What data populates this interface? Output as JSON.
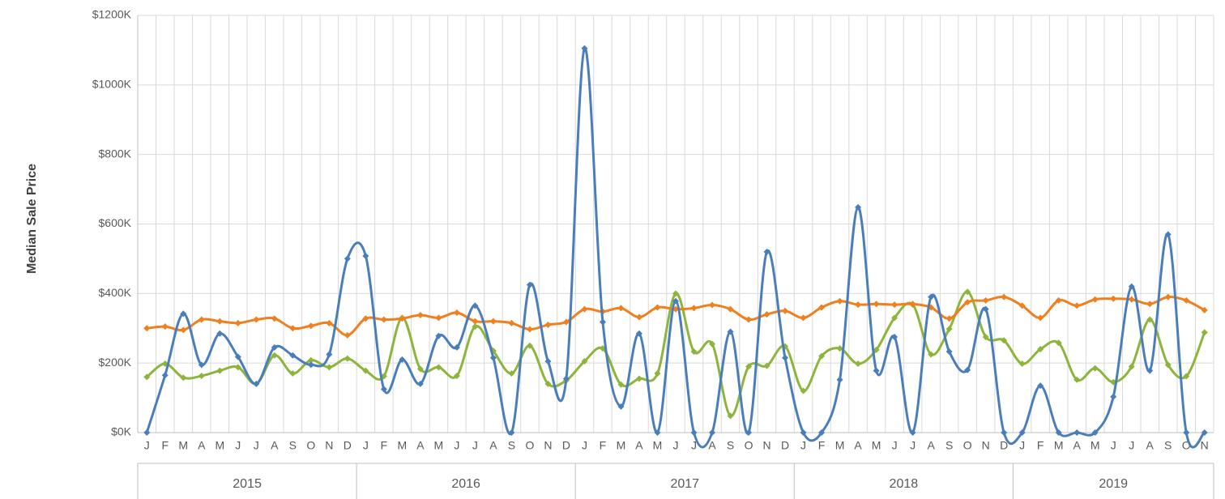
{
  "chart_data": {
    "type": "line",
    "y_label": "Median Sale Price",
    "category_groups": [
      {
        "label": "2015",
        "categories": [
          "J",
          "F",
          "M",
          "A",
          "M",
          "J",
          "J",
          "A",
          "S",
          "O",
          "N",
          "D"
        ]
      },
      {
        "label": "2016",
        "categories": [
          "J",
          "F",
          "M",
          "A",
          "M",
          "J",
          "J",
          "A",
          "S",
          "O",
          "N",
          "D"
        ]
      },
      {
        "label": "2017",
        "categories": [
          "J",
          "F",
          "M",
          "A",
          "M",
          "J",
          "J",
          "A",
          "S",
          "O",
          "N",
          "D"
        ]
      },
      {
        "label": "2018",
        "categories": [
          "J",
          "F",
          "M",
          "A",
          "M",
          "J",
          "J",
          "A",
          "S",
          "O",
          "N",
          "D"
        ]
      },
      {
        "label": "2019",
        "categories": [
          "J",
          "F",
          "M",
          "A",
          "M",
          "J",
          "J",
          "A",
          "S",
          "O",
          "N"
        ]
      }
    ],
    "series": [
      {
        "color": "#4a7ebb",
        "values": [
          0,
          165,
          342,
          195,
          285,
          218,
          140,
          245,
          222,
          195,
          225,
          500,
          508,
          125,
          210,
          140,
          278,
          245,
          365,
          215,
          0,
          425,
          205,
          155,
          1105,
          318,
          75,
          285,
          0,
          378,
          0,
          0,
          290,
          0,
          520,
          215,
          0,
          0,
          152,
          648,
          178,
          275,
          0,
          390,
          233,
          180,
          355,
          0,
          0,
          135,
          0,
          0,
          0,
          103,
          420,
          178,
          570,
          0,
          0
        ]
      },
      {
        "color": "#f07f1e",
        "values": [
          300,
          305,
          295,
          325,
          320,
          315,
          325,
          328,
          300,
          307,
          315,
          280,
          328,
          325,
          328,
          338,
          330,
          345,
          320,
          320,
          315,
          297,
          310,
          318,
          355,
          348,
          358,
          332,
          360,
          355,
          358,
          367,
          355,
          325,
          340,
          350,
          330,
          360,
          378,
          368,
          370,
          368,
          370,
          360,
          328,
          375,
          380,
          390,
          365,
          330,
          380,
          365,
          383,
          385,
          383,
          370,
          390,
          380,
          352
        ]
      },
      {
        "color": "#8db53c",
        "values": [
          160,
          198,
          158,
          163,
          178,
          188,
          140,
          222,
          170,
          208,
          188,
          213,
          178,
          162,
          330,
          183,
          188,
          163,
          305,
          235,
          170,
          250,
          140,
          150,
          205,
          242,
          138,
          155,
          170,
          400,
          233,
          255,
          48,
          190,
          192,
          248,
          120,
          220,
          242,
          198,
          238,
          330,
          368,
          225,
          298,
          405,
          275,
          265,
          198,
          240,
          258,
          152,
          185,
          145,
          190,
          325,
          195,
          162,
          288
        ]
      }
    ],
    "ylim": [
      0,
      1200
    ],
    "yticks": [
      {
        "value": 0,
        "label": "$0K"
      },
      {
        "value": 200,
        "label": "$200K"
      },
      {
        "value": 400,
        "label": "$400K"
      },
      {
        "value": 600,
        "label": "$600K"
      },
      {
        "value": 800,
        "label": "$800K"
      },
      {
        "value": 1000,
        "label": "$1000K"
      },
      {
        "value": 1200,
        "label": "$1200K"
      }
    ],
    "grid": true
  }
}
